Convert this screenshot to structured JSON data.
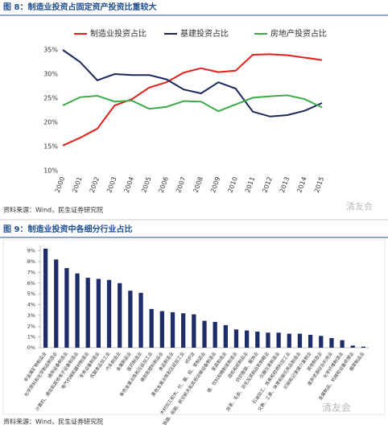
{
  "chart_data": [
    {
      "type": "line",
      "title": "图 8：制造业投资占固定资产投资比重较大",
      "source": "资料来源：Wind，民生证券研究院",
      "watermark": "清友会",
      "x": [
        "2000",
        "2001",
        "2002",
        "2003",
        "2004",
        "2005",
        "2006",
        "2007",
        "2008",
        "2009",
        "2010",
        "2011",
        "2012",
        "2013",
        "2014",
        "2015"
      ],
      "series": [
        {
          "name": "制造业投资占比",
          "color": "#e3211c",
          "values": [
            15.2,
            16.8,
            18.7,
            23.5,
            24.8,
            27.2,
            28.3,
            30.3,
            31.2,
            30.4,
            30.7,
            34.0,
            34.1,
            33.9,
            33.4,
            32.9
          ]
        },
        {
          "name": "基建投资占比",
          "color": "#1b2858",
          "values": [
            35.0,
            32.5,
            28.7,
            30.0,
            29.8,
            29.8,
            28.9,
            26.8,
            26.0,
            28.3,
            27.0,
            22.2,
            21.2,
            21.5,
            22.4,
            24.0
          ]
        },
        {
          "name": "房地产投资占比",
          "color": "#3daa48",
          "values": [
            23.5,
            25.2,
            25.5,
            24.3,
            24.5,
            22.8,
            23.2,
            24.4,
            24.3,
            22.3,
            23.7,
            25.1,
            25.4,
            25.6,
            24.8,
            23.1
          ]
        }
      ],
      "ylim": [
        10,
        35
      ],
      "yticks": [
        {
          "value": 10,
          "label": "10%"
        },
        {
          "value": 15,
          "label": "15%"
        },
        {
          "value": 20,
          "label": "20%"
        },
        {
          "value": 25,
          "label": "25%"
        },
        {
          "value": 30,
          "label": "30%"
        },
        {
          "value": 35,
          "label": "35%"
        }
      ],
      "grid": false,
      "legend": "top"
    },
    {
      "type": "bar",
      "title": "图 9：制造业投资中各细分行业占比",
      "source": "资料来源：Wind，民生证券研究院",
      "watermark": "清友会",
      "categories": [
        "非金属矿物制品业",
        "化学原料和化学制品制造业",
        "通用设备制造业",
        "计算机、通信和其他电子设备制造业",
        "电气机械和器材制造业",
        "专用设备制造业",
        "农副食品加工业",
        "汽车制造业",
        "金属制品业",
        "医药制造业",
        "有色金属冶炼和压延加工业",
        "橡胶和塑料制品业",
        "食品制造业",
        "黑色金属冶炼和压延加工业",
        "纺织业",
        "木材加工和木、竹、藤、棕、草制品业",
        "铁路、船舶、航空航天和其他运输设备制造业",
        "家具制造业",
        "酒、饮料和精制茶制造业",
        "造纸和纸制品业",
        "纺织服装、服饰业",
        "皮革、毛皮、羽毛及其制品和制鞋业",
        "仪器仪表制造业",
        "石油加工、炼焦和核燃料加工业",
        "文教、工美、体育和娱乐用品制造业",
        "印刷和记录媒介复制业",
        "其他制造业",
        "废弃资源综合利用业",
        "化学纤维制造业",
        "金属制品、机械和设备修理业",
        "烟草制品业"
      ],
      "values": [
        9.2,
        8.2,
        7.4,
        6.9,
        6.5,
        6.4,
        6.3,
        6.0,
        5.3,
        5.1,
        3.6,
        3.4,
        3.3,
        3.2,
        3.1,
        2.5,
        2.4,
        2.1,
        1.7,
        1.6,
        1.5,
        1.4,
        1.4,
        1.3,
        1.3,
        1.2,
        1.1,
        0.9,
        0.7,
        0.2,
        0.1
      ],
      "color": "#1f2c6a",
      "ylim": [
        0,
        9.5
      ],
      "yticks": [
        {
          "value": 0,
          "label": "0%"
        },
        {
          "value": 1,
          "label": "1%"
        },
        {
          "value": 2,
          "label": "2%"
        },
        {
          "value": 3,
          "label": "3%"
        },
        {
          "value": 4,
          "label": "4%"
        },
        {
          "value": 5,
          "label": "5%"
        },
        {
          "value": 6,
          "label": "6%"
        },
        {
          "value": 7,
          "label": "7%"
        },
        {
          "value": 8,
          "label": "8%"
        },
        {
          "value": 9,
          "label": "9%"
        }
      ],
      "grid": false
    }
  ]
}
